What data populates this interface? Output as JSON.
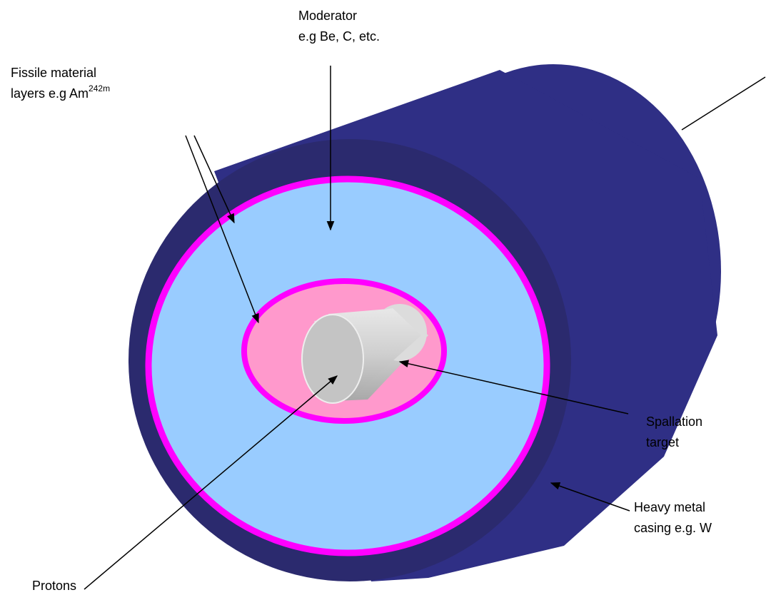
{
  "labels": {
    "moderator": {
      "line1": "Moderator",
      "line2": "e.g Be, C, etc."
    },
    "fissile": {
      "line1": "Fissile material",
      "line2": "layers e.g Am",
      "superscript": "242m"
    },
    "spallation": {
      "line1": "Spallation",
      "line2": "target"
    },
    "casing": {
      "line1": "Heavy metal",
      "line2": "casing e.g. W"
    },
    "protons": {
      "line1": "Protons"
    }
  }
}
